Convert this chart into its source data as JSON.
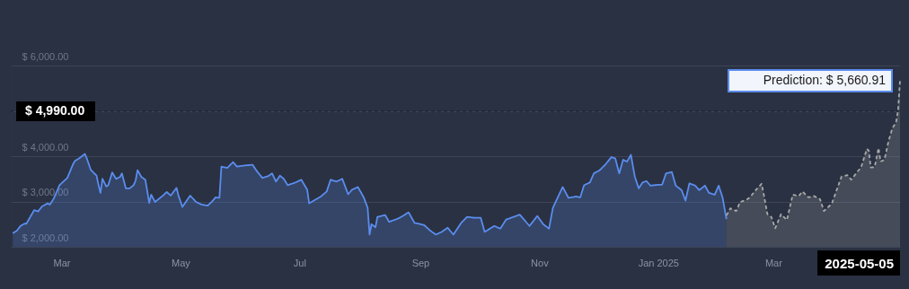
{
  "chart_data": {
    "type": "area",
    "xlim": [
      "2024-02-04",
      "2025-05-05"
    ],
    "ylim": [
      2000,
      6000
    ],
    "xticks": [
      {
        "value": "2024-03-01",
        "label": "Mar"
      },
      {
        "value": "2024-05-01",
        "label": "May"
      },
      {
        "value": "2024-07-01",
        "label": "Jul"
      },
      {
        "value": "2024-09-01",
        "label": "Sep"
      },
      {
        "value": "2024-11-01",
        "label": "Nov"
      },
      {
        "value": "2025-01-01",
        "label": "Jan 2025"
      },
      {
        "value": "2025-03-01",
        "label": "Mar"
      }
    ],
    "yticks": [
      {
        "value": 2000,
        "label": "$ 2,000.00"
      },
      {
        "value": 3000,
        "label": "$ 3,000.00"
      },
      {
        "value": 4000,
        "label": "$ 4,000.00"
      },
      {
        "value": 5000,
        "label": null
      },
      {
        "value": 6000,
        "label": "$ 6,000.00"
      }
    ],
    "grid": "y",
    "series": [
      {
        "color": "#5b8def",
        "line_style": "solid",
        "x": [
          "2024-02-05",
          "2024-02-07",
          "2024-02-09",
          "2024-02-11",
          "2024-02-12",
          "2024-02-14",
          "2024-02-16",
          "2024-02-18",
          "2024-02-20",
          "2024-02-23",
          "2024-02-24",
          "2024-02-26",
          "2024-02-29",
          "2024-03-02",
          "2024-03-04",
          "2024-03-07",
          "2024-03-08",
          "2024-03-10",
          "2024-03-13",
          "2024-03-14",
          "2024-03-16",
          "2024-03-19",
          "2024-03-20",
          "2024-03-21",
          "2024-03-22",
          "2024-03-24",
          "2024-03-25",
          "2024-03-27",
          "2024-03-29",
          "2024-03-31",
          "2024-04-01",
          "2024-04-03",
          "2024-04-05",
          "2024-04-07",
          "2024-04-08",
          "2024-04-09",
          "2024-04-11",
          "2024-04-13",
          "2024-04-15",
          "2024-04-16",
          "2024-04-18",
          "2024-04-22",
          "2024-04-24",
          "2024-04-26",
          "2024-04-29",
          "2024-04-30",
          "2024-05-02",
          "2024-05-06",
          "2024-05-09",
          "2024-05-12",
          "2024-05-15",
          "2024-05-17",
          "2024-05-19",
          "2024-05-21",
          "2024-05-22",
          "2024-05-25",
          "2024-05-28",
          "2024-05-30",
          "2024-06-02",
          "2024-06-07",
          "2024-06-09",
          "2024-06-12",
          "2024-06-15",
          "2024-06-17",
          "2024-06-19",
          "2024-06-21",
          "2024-06-23",
          "2024-06-25",
          "2024-06-29",
          "2024-07-02",
          "2024-07-05",
          "2024-07-06",
          "2024-07-08",
          "2024-07-12",
          "2024-07-15",
          "2024-07-17",
          "2024-07-20",
          "2024-07-23",
          "2024-07-26",
          "2024-07-28",
          "2024-07-31",
          "2024-08-03",
          "2024-08-05",
          "2024-08-06",
          "2024-08-07",
          "2024-08-09",
          "2024-08-10",
          "2024-08-14",
          "2024-08-16",
          "2024-08-21",
          "2024-08-26",
          "2024-08-29",
          "2024-09-03",
          "2024-09-06",
          "2024-09-09",
          "2024-09-12",
          "2024-09-15",
          "2024-09-18",
          "2024-09-22",
          "2024-09-25",
          "2024-09-29",
          "2024-10-02",
          "2024-10-04",
          "2024-10-09",
          "2024-10-12",
          "2024-10-15",
          "2024-10-22",
          "2024-10-27",
          "2024-10-31",
          "2024-11-03",
          "2024-11-06",
          "2024-11-08",
          "2024-11-13",
          "2024-11-16",
          "2024-11-20",
          "2024-11-22",
          "2024-11-24",
          "2024-11-27",
          "2024-11-29",
          "2024-12-02",
          "2024-12-05",
          "2024-12-08",
          "2024-12-10",
          "2024-12-12",
          "2024-12-14",
          "2024-12-16",
          "2024-12-18",
          "2024-12-20",
          "2024-12-22",
          "2024-12-24",
          "2024-12-26",
          "2024-12-28",
          "2025-01-01",
          "2025-01-03",
          "2025-01-05",
          "2025-01-08",
          "2025-01-10",
          "2025-01-13",
          "2025-01-15",
          "2025-01-17",
          "2025-01-20",
          "2025-01-22",
          "2025-01-25",
          "2025-01-27",
          "2025-01-30",
          "2025-02-01",
          "2025-02-03",
          "2025-02-05"
        ],
        "values": [
          2300,
          2350,
          2460,
          2510,
          2510,
          2660,
          2810,
          2780,
          2890,
          2960,
          2930,
          3060,
          3360,
          3440,
          3520,
          3830,
          3900,
          3950,
          4050,
          3950,
          3700,
          3570,
          3360,
          3190,
          3500,
          3330,
          3360,
          3640,
          3500,
          3540,
          3620,
          3290,
          3290,
          3360,
          3460,
          3690,
          3540,
          3480,
          2970,
          3150,
          2990,
          3130,
          3210,
          3130,
          3300,
          3130,
          2880,
          3130,
          2990,
          2930,
          2910,
          2990,
          3090,
          3080,
          3770,
          3740,
          3870,
          3770,
          3790,
          3810,
          3680,
          3520,
          3560,
          3620,
          3440,
          3570,
          3500,
          3360,
          3420,
          3480,
          3260,
          2960,
          3010,
          3110,
          3220,
          3480,
          3440,
          3500,
          3160,
          3260,
          3320,
          3090,
          2860,
          2270,
          2500,
          2430,
          2660,
          2700,
          2550,
          2630,
          2760,
          2530,
          2480,
          2360,
          2270,
          2330,
          2420,
          2270,
          2530,
          2660,
          2640,
          2640,
          2330,
          2460,
          2400,
          2600,
          2710,
          2460,
          2680,
          2500,
          2400,
          2860,
          3320,
          3080,
          3110,
          3090,
          3360,
          3420,
          3620,
          3690,
          3820,
          3980,
          3950,
          3620,
          3920,
          3880,
          4030,
          3550,
          3290,
          3420,
          3450,
          3350,
          3370,
          3370,
          3620,
          3650,
          3350,
          3250,
          3020,
          3400,
          3350,
          3250,
          3350,
          3190,
          3150,
          3350,
          3090,
          2610
        ]
      },
      {
        "color": "#a8a8a8",
        "line_style": "dashed",
        "x": [
          "2025-02-05",
          "2025-02-07",
          "2025-02-10",
          "2025-02-12",
          "2025-02-15",
          "2025-02-17",
          "2025-02-20",
          "2025-02-23",
          "2025-02-24",
          "2025-02-26",
          "2025-02-28",
          "2025-03-02",
          "2025-03-05",
          "2025-03-08",
          "2025-03-11",
          "2025-03-14",
          "2025-03-16",
          "2025-03-19",
          "2025-03-22",
          "2025-03-25",
          "2025-03-27",
          "2025-03-31",
          "2025-04-02",
          "2025-04-05",
          "2025-04-08",
          "2025-04-10",
          "2025-04-13",
          "2025-04-15",
          "2025-04-18",
          "2025-04-19",
          "2025-04-20",
          "2025-04-22",
          "2025-04-24",
          "2025-04-25",
          "2025-04-27",
          "2025-04-29",
          "2025-05-01",
          "2025-05-03",
          "2025-05-04",
          "2025-05-05"
        ],
        "values": [
          2690,
          2850,
          2790,
          2990,
          3030,
          3090,
          3250,
          3390,
          3190,
          2720,
          2660,
          2410,
          2720,
          2590,
          3150,
          3120,
          3220,
          3090,
          3120,
          3050,
          2790,
          2950,
          3190,
          3550,
          3580,
          3480,
          3650,
          3750,
          4160,
          4120,
          3750,
          3760,
          4180,
          3880,
          3920,
          4310,
          4610,
          4750,
          5010,
          5660.91
        ]
      }
    ],
    "ref_lines": [
      {
        "axis": "y",
        "value": 4990,
        "label": "$ 4,990.00",
        "line_style": "dashed",
        "color": "#1a1f2b"
      }
    ],
    "annotations": [
      {
        "text": "Prediction: $ 5,660.91",
        "x": "2025-05-05",
        "y": 5660.91
      },
      "2025-05-05"
    ]
  }
}
